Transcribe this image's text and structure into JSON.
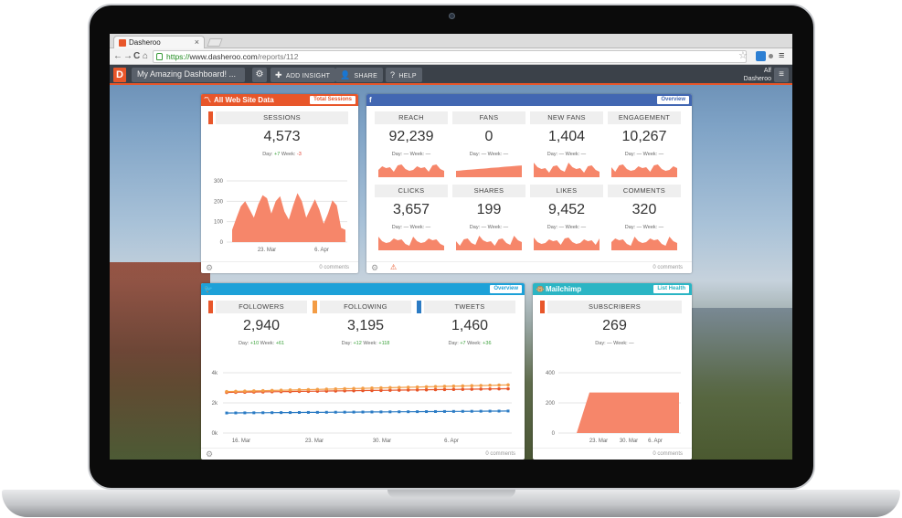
{
  "browser": {
    "tab_title": "Dasheroo",
    "tab_close": "×",
    "url_https": "https://",
    "url_host": "www.dasheroo.com",
    "url_path": "/reports/112",
    "nav": {
      "back": "←",
      "forward": "→",
      "reload": "C",
      "home": "⌂"
    },
    "star": "☆",
    "menu": "≡"
  },
  "app": {
    "logo": "D",
    "dashboard_select": "My Amazing Dashboard! ...",
    "gear": "⚙",
    "add_insight": "ADD INSIGHT",
    "share": "SHARE",
    "help": "HELP",
    "user_line1": "Alf",
    "user_line2": "Dasheroo",
    "menu": "≡",
    "colors": {
      "header": "#3b4149",
      "accent": "#e8562a",
      "chart": "#f6866a",
      "facebook": "#4267b2",
      "twitter": "#1da1d8",
      "mailchimp": "#2bb5c4"
    }
  },
  "widgets": {
    "website": {
      "title": "All Web Site Data",
      "badge": "Total Sessions",
      "metric": {
        "label": "SESSIONS",
        "value": "4,573",
        "day_label": "Day:",
        "day": "+7",
        "week_label": "Week:",
        "week": "-3"
      },
      "comments": "0 comments",
      "chart_data": {
        "type": "area",
        "yticks": [
          "300",
          "200",
          "100",
          "0"
        ],
        "ylim": [
          0,
          300
        ],
        "xticks": [
          "23. Mar",
          "6. Apr"
        ],
        "values": [
          60,
          120,
          175,
          200,
          160,
          120,
          185,
          230,
          215,
          140,
          200,
          225,
          150,
          110,
          180,
          240,
          200,
          120,
          165,
          210,
          160,
          90,
          140,
          205,
          180,
          70,
          60
        ]
      }
    },
    "facebook": {
      "icon": "f",
      "badge": "Overview",
      "comments": "0 comments",
      "warn": "⚠",
      "metrics": [
        {
          "label": "REACH",
          "value": "92,239",
          "sub": "Day: —   Week: —"
        },
        {
          "label": "FANS",
          "value": "0",
          "sub": "Day: —   Week: —"
        },
        {
          "label": "NEW FANS",
          "value": "1,404",
          "sub": "Day: —   Week: —"
        },
        {
          "label": "ENGAGEMENT",
          "value": "10,267",
          "sub": "Day: —   Week: —"
        },
        {
          "label": "CLICKS",
          "value": "3,657",
          "sub": "Day: —   Week: —"
        },
        {
          "label": "SHARES",
          "value": "199",
          "sub": "Day: —   Week: —"
        },
        {
          "label": "LIKES",
          "value": "9,452",
          "sub": "Day: —   Week: —"
        },
        {
          "label": "COMMENTS",
          "value": "320",
          "sub": "Day: —   Week: —"
        }
      ]
    },
    "twitter": {
      "icon": "🐦",
      "badge": "Overview",
      "comments": "0 comments",
      "metrics": [
        {
          "label": "FOLLOWERS",
          "value": "2,940",
          "day": "+10",
          "week": "+61",
          "color": "#e8562a"
        },
        {
          "label": "FOLLOWING",
          "value": "3,195",
          "day": "+12",
          "week": "+118",
          "color": "#f39c45"
        },
        {
          "label": "TWEETS",
          "value": "1,460",
          "day": "+7",
          "week": "+36",
          "color": "#2b7bc4"
        }
      ],
      "day_label": "Day:",
      "week_label": "Week:",
      "chart_data": {
        "type": "line",
        "yticks": [
          "4k",
          "2k",
          "0k"
        ],
        "ylim": [
          0,
          4000
        ],
        "xticks": [
          "16. Mar",
          "23. Mar",
          "30. Mar",
          "6. Apr"
        ],
        "series": [
          {
            "name": "FOLLOWERS",
            "color": "#e8562a",
            "start": 2700,
            "end": 2940
          },
          {
            "name": "FOLLOWING",
            "color": "#f39c45",
            "start": 2750,
            "end": 3195
          },
          {
            "name": "TWEETS",
            "color": "#2b7bc4",
            "start": 1330,
            "end": 1460
          }
        ]
      }
    },
    "mailchimp": {
      "title": "Mailchimp",
      "badge": "List Health",
      "metric": {
        "label": "SUBSCRIBERS",
        "value": "269",
        "sub": "Day: —   Week: —"
      },
      "comments": "0 comments",
      "chart_data": {
        "type": "area",
        "yticks": [
          "400",
          "200",
          "0"
        ],
        "ylim": [
          0,
          400
        ],
        "xticks": [
          "23. Mar",
          "30. Mar",
          "6. Apr"
        ],
        "values": [
          0,
          0,
          269,
          269,
          269,
          269,
          269,
          269,
          269,
          269
        ]
      }
    }
  }
}
